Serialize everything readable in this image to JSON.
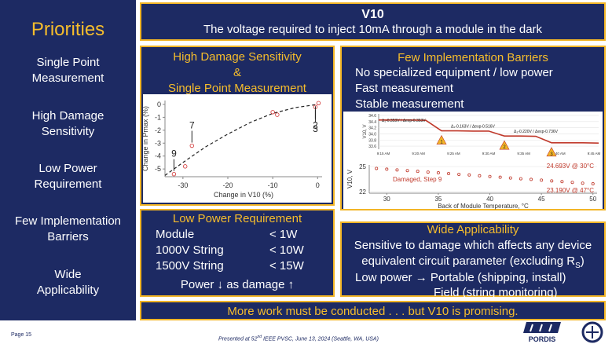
{
  "sidebar": {
    "title": "Priorities",
    "items": [
      "Single Point\nMeasurement",
      "High Damage\nSensitivity",
      "Low Power\nRequirement",
      "Few Implementation\nBarriers",
      "Wide\nApplicability"
    ]
  },
  "header": {
    "title": "V10",
    "subtitle": "The voltage required to inject 10mA through a module in the dark"
  },
  "damage_panel": {
    "title": "High Damage Sensitivity\n&\nSingle Point Measurement",
    "chart": {
      "xlabel": "Change in V10 (%)",
      "ylabel": "Change in Pmax (%)",
      "xlim": [
        -34,
        1
      ],
      "ylim": [
        -5.6,
        0.3
      ],
      "xticks": [
        -30,
        -20,
        -10,
        0
      ],
      "yticks": [
        0,
        -1,
        -2,
        -3,
        -4,
        -5
      ],
      "points": {
        "x": [
          -32,
          -29.5,
          -28,
          -10,
          -9,
          -0.5,
          0.2
        ],
        "y": [
          -5.4,
          -4.8,
          -3.2,
          -0.6,
          -0.8,
          -0.2,
          0.1
        ]
      },
      "fit": {
        "x": [
          -34,
          -30,
          -25,
          -20,
          -15,
          -10,
          -5,
          0
        ],
        "y": [
          -5.5,
          -4.5,
          -3.3,
          -2.3,
          -1.4,
          -0.7,
          -0.25,
          0
        ]
      },
      "annotations": [
        "9",
        "7",
        "3",
        "2"
      ]
    }
  },
  "barriers_panel": {
    "title": "Few Implementation Barriers",
    "items": [
      "No specialized equipment / low power",
      "Fast measurement",
      "Stable measurement"
    ],
    "step_chart": {
      "ylabel": "V10, V",
      "categories": [
        "9:15 AM",
        "9:20 AM",
        "9:25 AM",
        "9:30 AM",
        "9:35 AM",
        "9:40 AM",
        "9:45 AM"
      ],
      "ylim": [
        33.5,
        34.65
      ],
      "yticks": [
        33.6,
        33.8,
        {
          "value": 34,
          "label": "34.0"
        },
        34.2,
        34.4,
        34.6
      ],
      "values": [
        34.45,
        34.45,
        34.45,
        34.44,
        34.1,
        34.1,
        34.09,
        34.09,
        33.93,
        33.93,
        33.92,
        33.71,
        33.71,
        33.71,
        33.7
      ],
      "steps": [
        "1",
        "2",
        "3"
      ],
      "annotations": [
        "Δ₁-0.353V / Δexp-0.353V",
        "Δ₂-0.163V / Δexp-0.516V",
        "Δ₃-0.220V / Δexp-0.736V"
      ]
    },
    "temp_chart": {
      "xlabel": "Back of Module Temperature, °C",
      "ylabel": "V10, V",
      "xlim": [
        28.3,
        50.4
      ],
      "ylim": [
        21.8,
        25.2
      ],
      "xticks": [
        30,
        35,
        40,
        45,
        50
      ],
      "yticks": [
        22,
        25
      ],
      "x": [
        29,
        30,
        31,
        32,
        33,
        34,
        35,
        36,
        37,
        38,
        39,
        40,
        41,
        42,
        43,
        44,
        45,
        46,
        47,
        48,
        49,
        50
      ],
      "values": [
        24.78,
        24.69,
        24.6,
        24.52,
        24.43,
        24.34,
        24.25,
        24.16,
        24.07,
        23.99,
        23.9,
        23.81,
        23.72,
        23.63,
        23.54,
        23.46,
        23.37,
        23.28,
        23.19,
        23.1,
        23.01,
        22.93
      ],
      "annotations": [
        "24.693V @ 30°C",
        "23.190V @ 47°C",
        "Damaged, Step 9"
      ]
    }
  },
  "power_panel": {
    "title": "Low Power Requirement",
    "rows": [
      [
        "Module",
        "< 1W"
      ],
      [
        "1000V String",
        "< 10W"
      ],
      [
        "1500V String",
        "< 15W"
      ]
    ],
    "note": "Power ↓ as damage ↑"
  },
  "wide_panel": {
    "title": "Wide Applicability",
    "line1": "Sensitive to damage which affects any device",
    "line2_pre": "equivalent circuit parameter (excluding R",
    "line2_sub": "S",
    "line2_post": ")",
    "line3": "Low power → Portable (shipping, install)",
    "line4": "Field (string monitoring)"
  },
  "banner": "More work must be conducted . . . but V10 is promising.",
  "footer": {
    "page": "Page 15",
    "presented_pre": "Presented at 52",
    "presented_sup": "nd",
    "presented_post": " IEEE PVSC, June 13, 2024 (Seattle, WA, USA)",
    "logo": "PORDIS"
  }
}
